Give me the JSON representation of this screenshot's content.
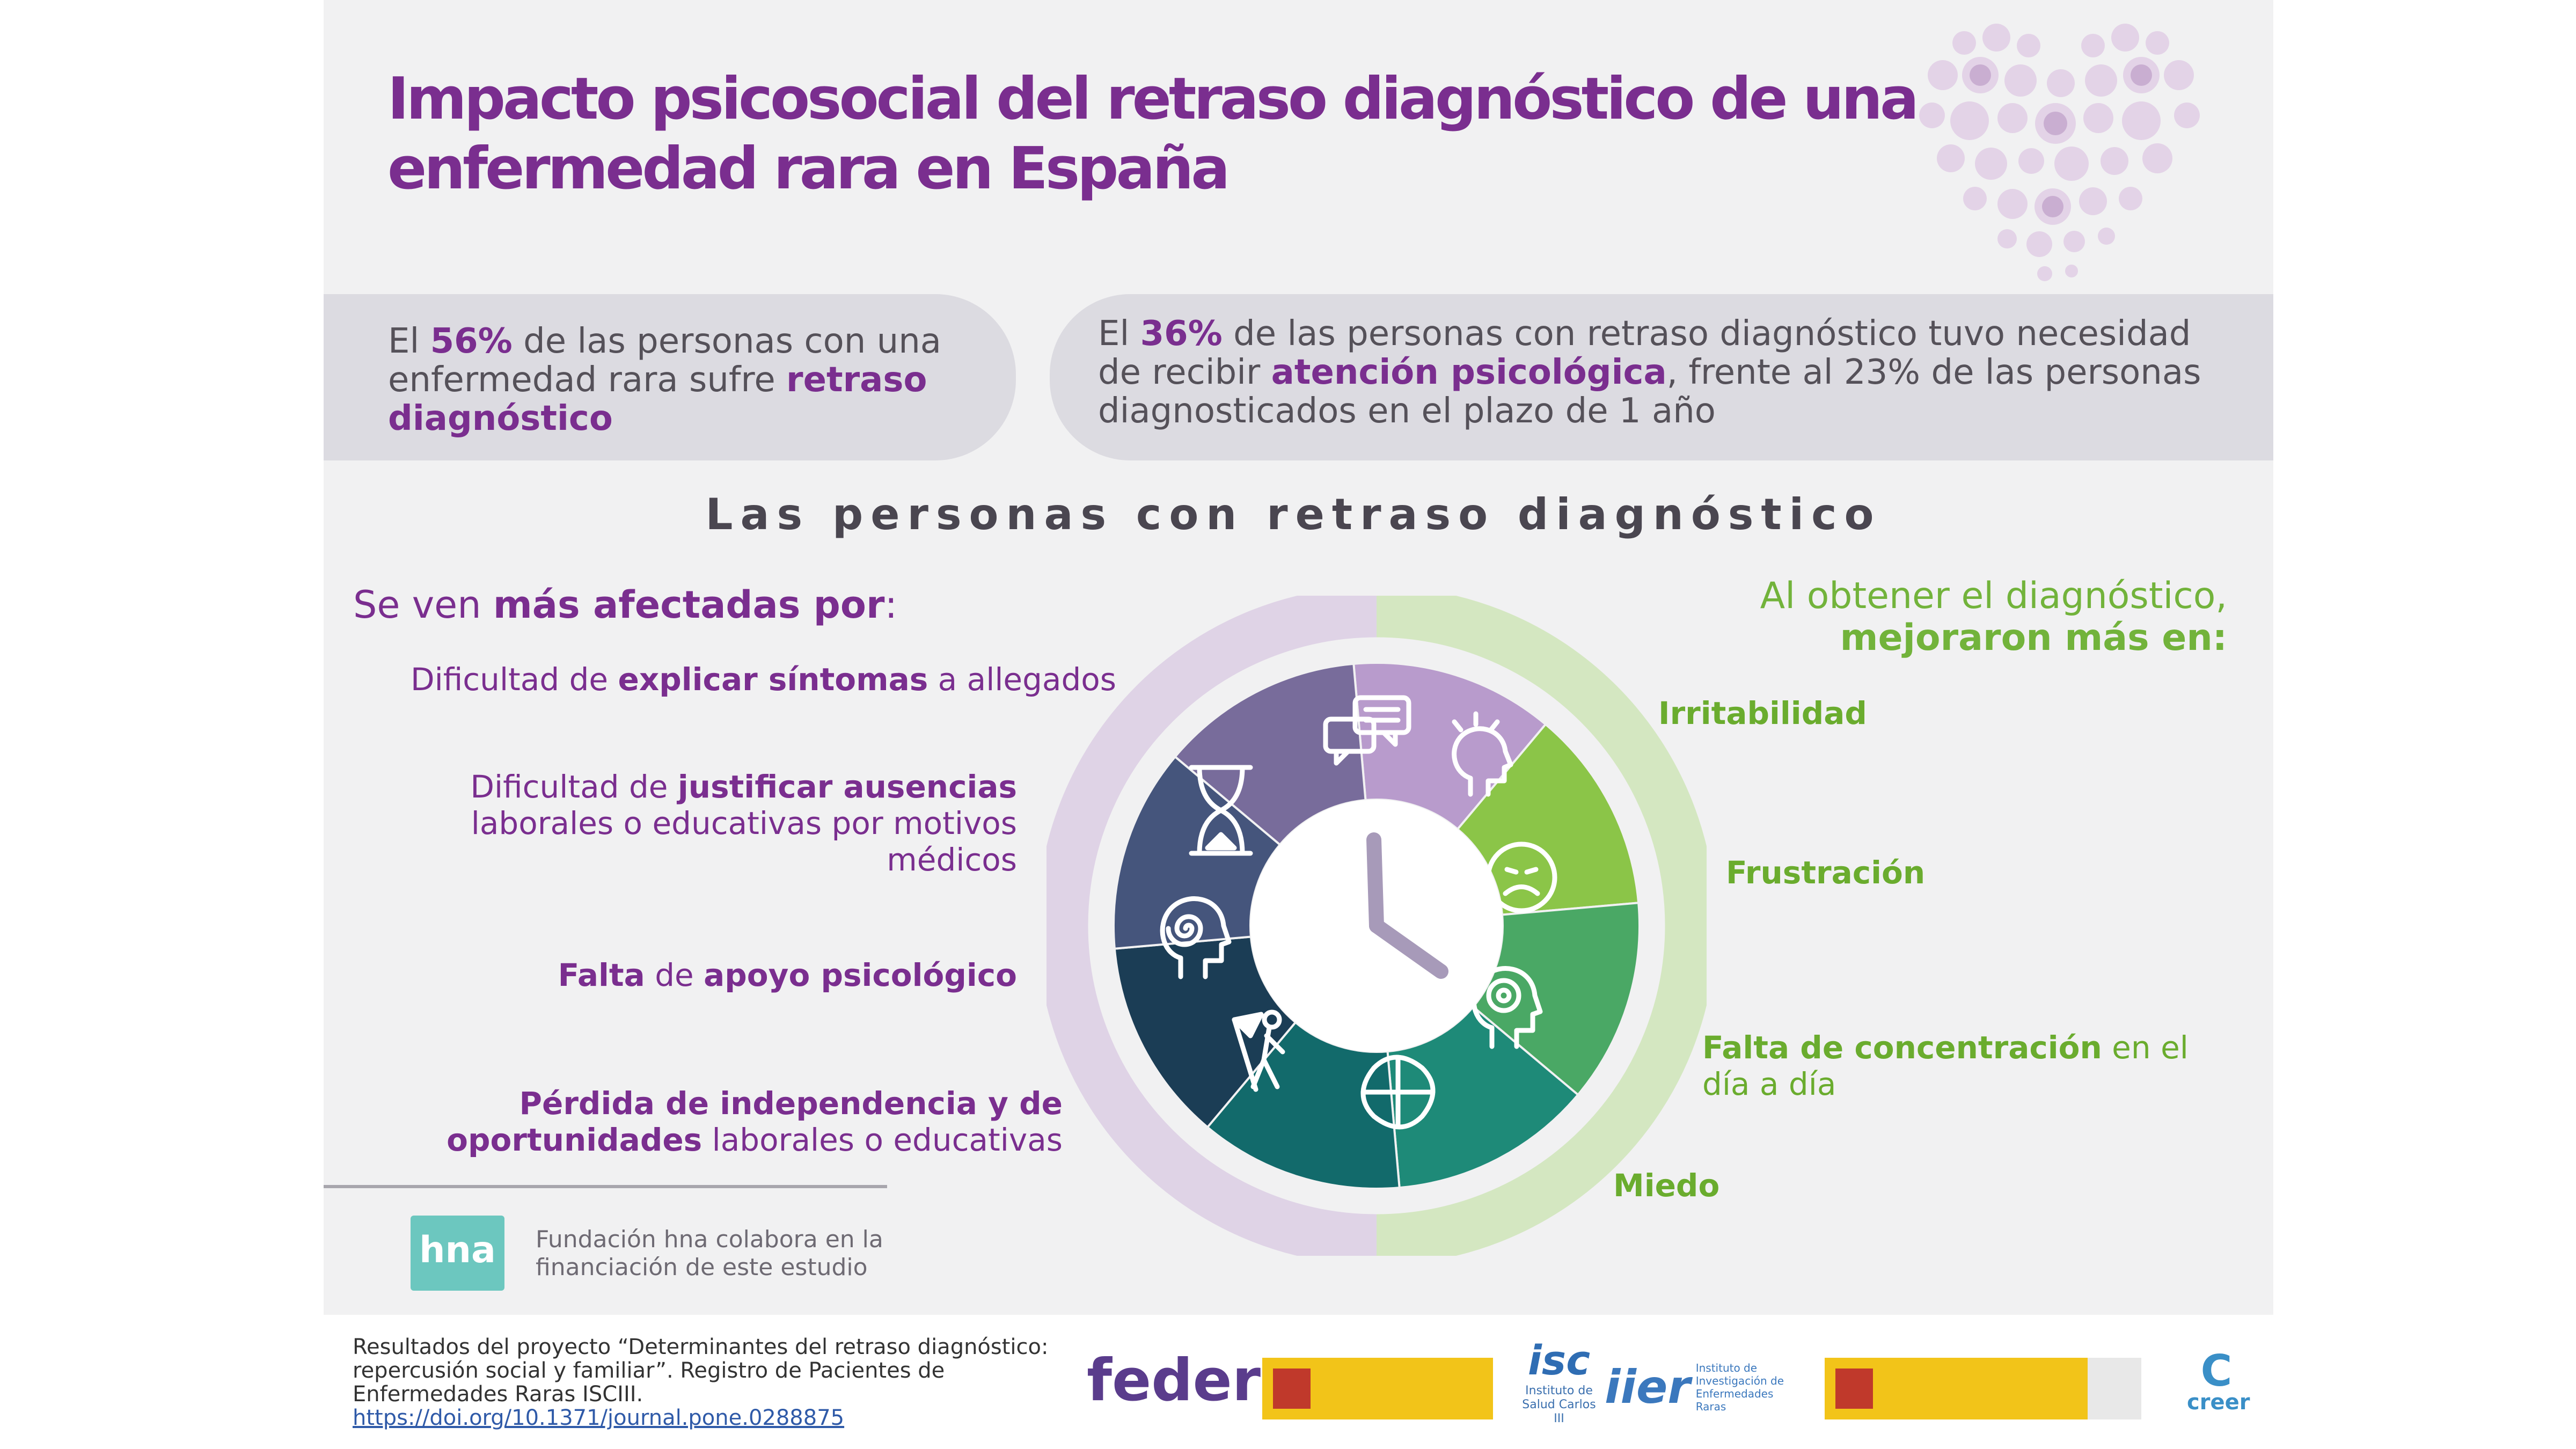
{
  "title": {
    "line1": "Impacto psicosocial del retraso diagnóstico de una",
    "line2": "enfermedad rara en España"
  },
  "stat_left": {
    "pre": "El ",
    "pct": "56%",
    "mid": " de las personas con una enfermedad rara sufre ",
    "bold": "retraso diagnóstico"
  },
  "stat_right": {
    "pre": "El ",
    "pct": "36%",
    "mid": " de las personas con retraso diagnóstico tuvo necesidad de recibir ",
    "bold": "atención psicológica",
    "post": ", frente al 23% de las personas diagnosticados en el plazo de 1 año"
  },
  "section_heading": "Las personas con retraso diagnóstico",
  "left_title": {
    "pre": "Se ven ",
    "bold": "más afectadas por",
    "post": ":"
  },
  "right_title": {
    "line1": "Al obtener el diagnóstico,",
    "line2": "mejoraron más en:"
  },
  "left_items": [
    {
      "pre": "Dificultad de ",
      "bold": "explicar síntomas",
      "post": " a allegados"
    },
    {
      "pre": "Dificultad de ",
      "bold": "justificar ausencias",
      "post": " laborales o educativas por motivos médicos"
    },
    {
      "bold1": "Falta",
      "mid": " de ",
      "bold2": "apoyo psicológico"
    },
    {
      "bold": "Pérdida de independencia y de oportunidades",
      "post": " laborales o educativas"
    }
  ],
  "right_items": [
    {
      "bold": "Irritabilidad"
    },
    {
      "bold": "Frustración"
    },
    {
      "bold": "Falta de concentración",
      "post": " en el día a día"
    },
    {
      "bold": "Miedo"
    }
  ],
  "funding": {
    "logo_text": "hna",
    "text": "Fundación hna colabora en la financiación de este estudio"
  },
  "source": {
    "text": "Resultados del proyecto “Determinantes del retraso diagnóstico: repercusión social y familiar”. Registro de Pacientes de Enfermedades Raras ISCIII.",
    "link": "https://doi.org/10.1371/journal.pone.0288875"
  },
  "logos": {
    "feder": "feder",
    "isc_main": "isc",
    "isc_sub": "Instituto de Salud Carlos III",
    "iier": "iier",
    "iier_sub": "Instituto de Investigación de Enfermedades Raras",
    "creer": "creer"
  },
  "colors": {
    "purple": "#7a2e8f",
    "green": "#72b33b",
    "panel": "#f1f1f2",
    "pill": "#dcdbe1"
  }
}
